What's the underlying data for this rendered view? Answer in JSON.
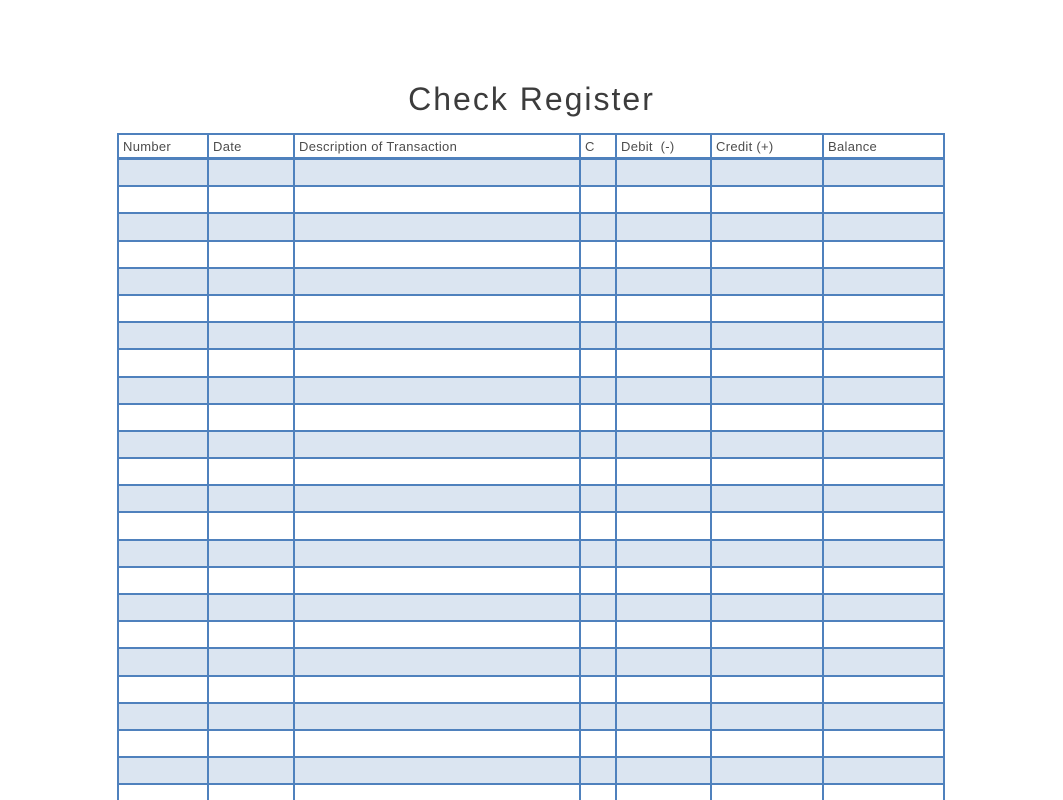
{
  "page": {
    "title": "Check Register"
  },
  "table": {
    "columns": [
      {
        "key": "number",
        "label": "Number"
      },
      {
        "key": "date",
        "label": "Date"
      },
      {
        "key": "description",
        "label": "Description of Transaction"
      },
      {
        "key": "c",
        "label": "C"
      },
      {
        "key": "debit",
        "label": "Debit  (-)"
      },
      {
        "key": "credit",
        "label": "Credit (+)"
      },
      {
        "key": "balance",
        "label": "Balance"
      }
    ],
    "visible_row_count": 24,
    "cell_value": "",
    "shading": "alternate-rows-starting-with-first",
    "colors": {
      "border": "#4f81bd",
      "shaded_row": "#dbe5f1",
      "unshaded_row": "#ffffff",
      "header_text": "#4d4d4d",
      "title_text": "#3c3c3c"
    }
  }
}
